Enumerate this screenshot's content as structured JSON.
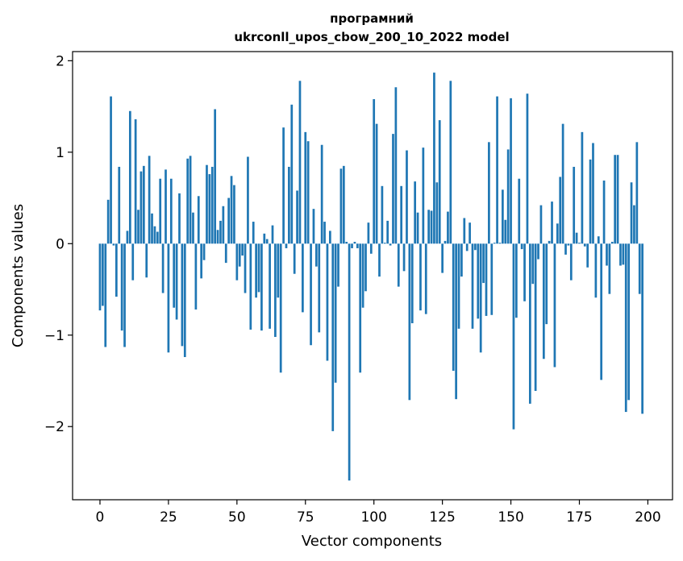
{
  "chart_data": {
    "type": "bar",
    "title_line1": "програмний",
    "title_line2": "ukrconll_upos_cbow_200_10_2022 model",
    "xlabel": "Vector components",
    "ylabel": "Components values",
    "xlim": [
      -10,
      209
    ],
    "ylim": [
      -2.8,
      2.1
    ],
    "x_ticks": [
      0,
      25,
      50,
      75,
      100,
      125,
      150,
      175,
      200
    ],
    "x_tick_labels": [
      "0",
      "25",
      "50",
      "75",
      "100",
      "125",
      "150",
      "175",
      "200"
    ],
    "y_ticks": [
      -2,
      -1,
      0,
      1,
      2
    ],
    "y_tick_labels": [
      "−2",
      "−1",
      "0",
      "1",
      "2"
    ],
    "bar_color": "#1f77b4",
    "grid": false,
    "legend": "none",
    "values": [
      -0.73,
      -0.68,
      -1.13,
      0.48,
      1.61,
      -0.02,
      -0.58,
      0.84,
      -0.95,
      -1.13,
      0.14,
      1.45,
      -0.4,
      1.36,
      0.37,
      0.79,
      0.85,
      -0.37,
      0.96,
      0.33,
      0.19,
      0.13,
      0.71,
      -0.54,
      0.81,
      -1.19,
      0.71,
      -0.7,
      -0.83,
      0.55,
      -1.12,
      -1.24,
      0.93,
      0.96,
      0.34,
      -0.72,
      0.52,
      -0.38,
      -0.18,
      0.86,
      0.76,
      0.84,
      1.47,
      0.15,
      0.25,
      0.41,
      -0.21,
      0.5,
      0.74,
      0.64,
      -0.4,
      -0.25,
      -0.13,
      -0.54,
      0.95,
      -0.94,
      0.24,
      -0.59,
      -0.53,
      -0.95,
      0.11,
      0.05,
      -0.93,
      0.2,
      -1.02,
      -0.59,
      -1.41,
      1.27,
      -0.05,
      0.84,
      1.52,
      -0.33,
      0.58,
      1.78,
      -0.75,
      1.22,
      1.12,
      -1.11,
      0.38,
      -0.25,
      -0.97,
      1.08,
      0.24,
      -1.28,
      0.14,
      -2.05,
      -1.52,
      -0.47,
      0.82,
      0.85,
      0.02,
      -2.59,
      -0.05,
      0.02,
      -0.05,
      -1.41,
      -0.7,
      -0.52,
      0.23,
      -0.11,
      1.58,
      1.31,
      -0.36,
      0.63,
      0.01,
      0.25,
      -0.02,
      1.2,
      1.71,
      -0.47,
      0.63,
      -0.3,
      1.02,
      -1.71,
      -0.87,
      0.68,
      0.34,
      -0.73,
      1.05,
      -0.77,
      0.37,
      0.36,
      1.87,
      0.67,
      1.35,
      -0.32,
      0.03,
      0.35,
      1.78,
      -1.39,
      -1.7,
      -0.93,
      -0.36,
      0.28,
      -0.08,
      0.23,
      -0.93,
      -0.07,
      -0.82,
      -1.19,
      -0.43,
      -0.79,
      1.11,
      -0.78,
      0.01,
      1.61,
      0.01,
      0.59,
      0.26,
      1.03,
      1.59,
      -2.03,
      -0.81,
      0.71,
      -0.06,
      -0.63,
      1.64,
      -1.75,
      -0.44,
      -1.61,
      -0.17,
      0.42,
      -1.26,
      -0.88,
      0.03,
      0.46,
      -1.35,
      0.22,
      0.73,
      1.31,
      -0.12,
      -0.02,
      -0.4,
      0.84,
      0.12,
      0.01,
      1.22,
      -0.03,
      -0.26,
      0.92,
      1.1,
      -0.59,
      0.08,
      -1.49,
      0.69,
      -0.24,
      -0.55,
      0.02,
      0.97,
      0.97,
      -0.24,
      -0.23,
      -1.84,
      -1.71,
      0.67,
      0.42,
      1.11,
      -0.55,
      -1.86
    ]
  }
}
